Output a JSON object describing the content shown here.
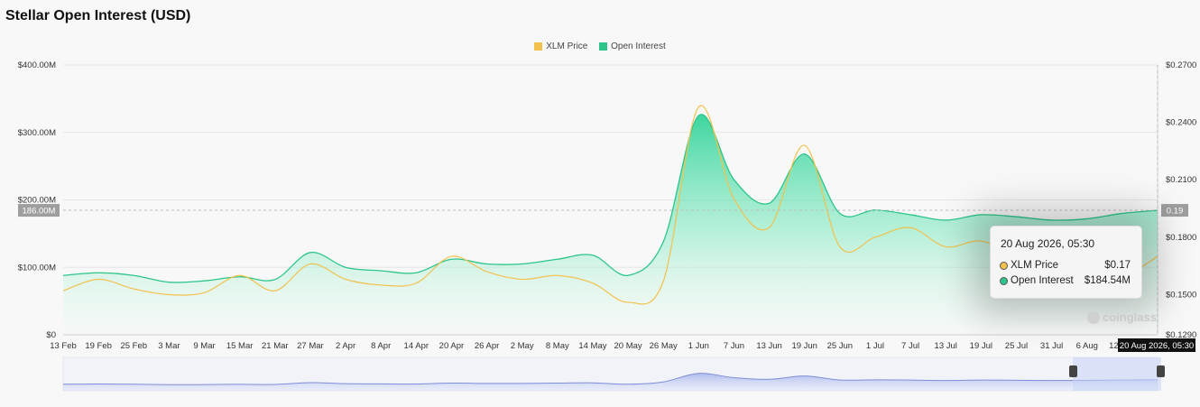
{
  "title": "Stellar Open Interest (USD)",
  "legend": [
    {
      "name": "XLM Price",
      "color": "#f2c14e"
    },
    {
      "name": "Open Interest",
      "color": "#2dc58a"
    }
  ],
  "crosshair": {
    "left_label": "186.00M",
    "right_label": "0.19",
    "date_label": "20 Aug 2026, 05:30"
  },
  "tooltip": {
    "date": "20 Aug 2026, 05:30",
    "rows": [
      {
        "label": "XLM Price",
        "value": "$0.17",
        "color": "#f2c14e"
      },
      {
        "label": "Open Interest",
        "value": "$184.54M",
        "color": "#2dc58a"
      }
    ]
  },
  "watermark": "coinglass",
  "chart_data": {
    "type": "area",
    "title": "Stellar Open Interest (USD)",
    "x": [
      "13 Feb",
      "19 Feb",
      "25 Feb",
      "3 Mar",
      "9 Mar",
      "15 Mar",
      "21 Mar",
      "27 Mar",
      "2 Apr",
      "8 Apr",
      "14 Apr",
      "20 Apr",
      "26 Apr",
      "2 May",
      "8 May",
      "14 May",
      "20 May",
      "26 May",
      "1 Jun",
      "7 Jun",
      "13 Jun",
      "19 Jun",
      "25 Jun",
      "1 Jul",
      "7 Jul",
      "13 Jul",
      "19 Jul",
      "25 Jul",
      "31 Jul",
      "6 Aug",
      "12 Aug",
      "20 Aug"
    ],
    "x_tick_labels": [
      "13 Feb",
      "19 Feb",
      "25 Feb",
      "3 Mar",
      "9 Mar",
      "15 Mar",
      "21 Mar",
      "27 Mar",
      "2 Apr",
      "8 Apr",
      "14 Apr",
      "20 Apr",
      "26 Apr",
      "2 May",
      "8 May",
      "14 May",
      "20 May",
      "26 May",
      "1 Jun",
      "7 Jun",
      "13 Jun",
      "19 Jun",
      "25 Jun",
      "1 Jul",
      "7 Jul",
      "13 Jul",
      "19 Jul",
      "25 Jul",
      "31 Jul",
      "6 Aug",
      "12 Aug"
    ],
    "y_left_ticks": [
      "$0",
      "$100.00M",
      "$200.00M",
      "$300.00M",
      "$400.00M"
    ],
    "y_left_range": [
      0,
      400
    ],
    "y_right_ticks": [
      "$0.1290",
      "$0.1500",
      "$0.1800",
      "$0.2100",
      "$0.2400",
      "$0.2700"
    ],
    "y_right_range": [
      0.129,
      0.27
    ],
    "grid": true,
    "legend_position": "top-center",
    "series": [
      {
        "name": "Open Interest",
        "axis": "left",
        "unit": "M USD",
        "values": [
          88,
          92,
          88,
          78,
          80,
          86,
          82,
          122,
          100,
          95,
          92,
          112,
          105,
          105,
          112,
          118,
          88,
          138,
          325,
          230,
          195,
          268,
          180,
          185,
          178,
          170,
          178,
          175,
          170,
          172,
          180,
          184.54
        ]
      },
      {
        "name": "XLM Price",
        "axis": "right",
        "unit": "USD",
        "values": [
          0.152,
          0.158,
          0.153,
          0.15,
          0.151,
          0.16,
          0.152,
          0.166,
          0.158,
          0.155,
          0.156,
          0.17,
          0.162,
          0.158,
          0.16,
          0.156,
          0.146,
          0.157,
          0.248,
          0.2,
          0.185,
          0.228,
          0.175,
          0.18,
          0.185,
          0.175,
          0.178,
          0.17,
          0.165,
          0.167,
          0.16,
          0.17
        ]
      }
    ]
  }
}
